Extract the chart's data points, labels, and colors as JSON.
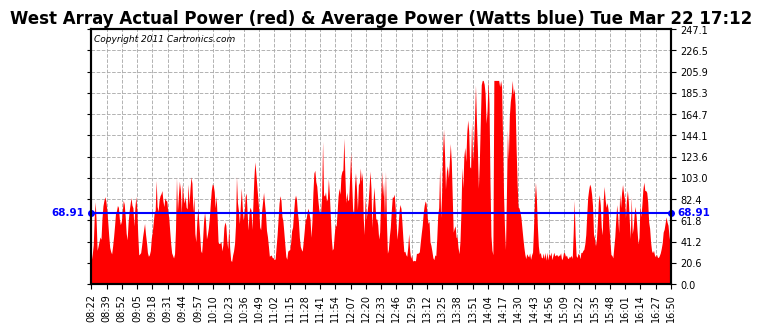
{
  "title": "West Array Actual Power (red) & Average Power (Watts blue) Tue Mar 22 17:12",
  "copyright": "Copyright 2011 Cartronics.com",
  "average_power": 68.91,
  "ymin": 0.0,
  "ymax": 247.1,
  "yticks": [
    0.0,
    20.6,
    41.2,
    61.8,
    82.4,
    103.0,
    123.6,
    144.1,
    164.7,
    185.3,
    205.9,
    226.5,
    247.1
  ],
  "xtick_labels": [
    "08:22",
    "08:39",
    "08:52",
    "09:05",
    "09:18",
    "09:31",
    "09:44",
    "09:57",
    "10:10",
    "10:23",
    "10:36",
    "10:49",
    "11:02",
    "11:15",
    "11:28",
    "11:41",
    "11:54",
    "12:07",
    "12:20",
    "12:33",
    "12:46",
    "12:59",
    "13:12",
    "13:25",
    "13:38",
    "13:51",
    "14:04",
    "14:17",
    "14:30",
    "14:43",
    "14:56",
    "15:09",
    "15:22",
    "15:35",
    "15:48",
    "16:01",
    "16:14",
    "16:27",
    "16:50"
  ],
  "background_color": "#ffffff",
  "plot_bg_color": "#ffffff",
  "grid_color": "#aaaaaa",
  "fill_color": "#ff0000",
  "line_color": "#0000ff",
  "border_color": "#000000",
  "title_fontsize": 12,
  "tick_fontsize": 7,
  "avg_label_fontsize": 7.5,
  "n_points": 600,
  "seed": 42
}
